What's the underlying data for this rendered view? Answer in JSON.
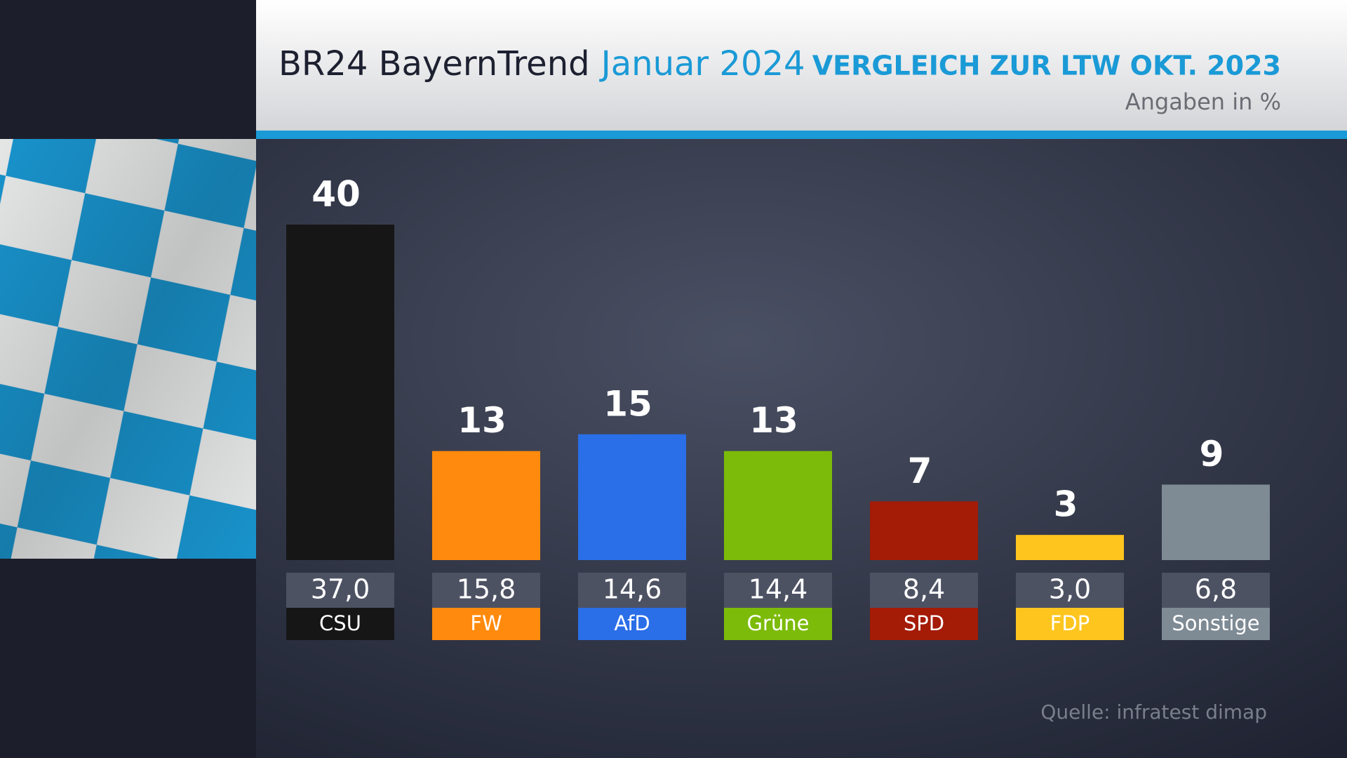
{
  "chart_data": {
    "type": "bar",
    "title": "BR24 BayernTrend",
    "title_date": "Januar 2024",
    "subtitle": "VERGLEICH ZUR LTW OKT. 2023",
    "unit_note": "Angaben in %",
    "source": "Quelle: infratest dimap",
    "categories": [
      "CSU",
      "FW",
      "AfD",
      "Grüne",
      "SPD",
      "FDP",
      "Sonstige"
    ],
    "values": [
      40,
      13,
      15,
      13,
      7,
      3,
      9
    ],
    "colors": [
      "#161616",
      "#ff8a0d",
      "#2a6ee8",
      "#7cbb0a",
      "#a41b06",
      "#fec51f",
      "#7e8a94"
    ],
    "comparison_values": [
      37.0,
      15.8,
      14.6,
      14.4,
      8.4,
      3.0,
      6.8
    ],
    "comparison_value_labels": [
      "37,0",
      "15,8",
      "14,6",
      "14,4",
      "8,4",
      "3,0",
      "6,8"
    ]
  }
}
